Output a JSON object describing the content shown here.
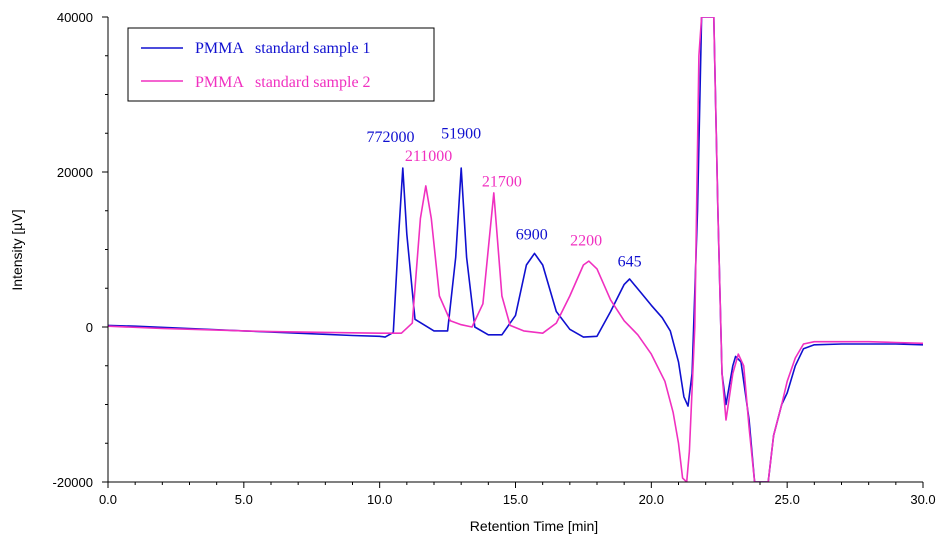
{
  "chart_data": {
    "type": "line",
    "xlabel": "Retention Time [min]",
    "ylabel": "Intensity [µV]",
    "xlim": [
      0,
      30
    ],
    "ylim": [
      -20000,
      40000
    ],
    "x_ticks": [
      "0.0",
      "5.0",
      "10.0",
      "15.0",
      "20.0",
      "25.0",
      "30.0"
    ],
    "y_ticks": [
      "-20000",
      "0",
      "20000",
      "40000"
    ],
    "grid": false,
    "legend_position": "top-left",
    "colors": {
      "series1": "#1010d0",
      "series2": "#f030c0"
    },
    "series": [
      {
        "name": "PMMA   standard sample 1",
        "color": "#1010d0",
        "points": [
          [
            0,
            200
          ],
          [
            1,
            100
          ],
          [
            3,
            -200
          ],
          [
            5,
            -500
          ],
          [
            7,
            -800
          ],
          [
            9,
            -1100
          ],
          [
            10,
            -1200
          ],
          [
            10.2,
            -1300
          ],
          [
            10.5,
            -700
          ],
          [
            10.7,
            12000
          ],
          [
            10.85,
            20500
          ],
          [
            11.0,
            12000
          ],
          [
            11.3,
            1000
          ],
          [
            12.0,
            -500
          ],
          [
            12.5,
            -500
          ],
          [
            12.8,
            9000
          ],
          [
            13.0,
            20500
          ],
          [
            13.2,
            9000
          ],
          [
            13.5,
            0
          ],
          [
            14.0,
            -1000
          ],
          [
            14.5,
            -1000
          ],
          [
            15.0,
            1500
          ],
          [
            15.4,
            8000
          ],
          [
            15.7,
            9500
          ],
          [
            16.0,
            8000
          ],
          [
            16.5,
            2000
          ],
          [
            17.0,
            -300
          ],
          [
            17.5,
            -1300
          ],
          [
            18.0,
            -1200
          ],
          [
            18.5,
            2000
          ],
          [
            19.0,
            5500
          ],
          [
            19.2,
            6200
          ],
          [
            19.6,
            4500
          ],
          [
            20.0,
            2800
          ],
          [
            20.4,
            1200
          ],
          [
            20.7,
            -500
          ],
          [
            21.0,
            -4500
          ],
          [
            21.2,
            -9000
          ],
          [
            21.35,
            -10200
          ],
          [
            21.5,
            -6000
          ],
          [
            21.7,
            15000
          ],
          [
            21.85,
            40000
          ],
          [
            22.3,
            40000
          ],
          [
            22.45,
            15000
          ],
          [
            22.6,
            -6000
          ],
          [
            22.75,
            -10000
          ],
          [
            23.0,
            -5000
          ],
          [
            23.1,
            -3800
          ],
          [
            23.3,
            -4500
          ],
          [
            23.6,
            -12000
          ],
          [
            23.8,
            -20000
          ],
          [
            24.3,
            -20000
          ],
          [
            24.5,
            -14000
          ],
          [
            24.8,
            -10000
          ],
          [
            25.0,
            -8500
          ],
          [
            25.3,
            -5000
          ],
          [
            25.6,
            -2800
          ],
          [
            26.0,
            -2300
          ],
          [
            27.0,
            -2200
          ],
          [
            28.0,
            -2200
          ],
          [
            29.0,
            -2200
          ],
          [
            30.0,
            -2300
          ]
        ]
      },
      {
        "name": "PMMA   standard sample 2",
        "color": "#f030c0",
        "points": [
          [
            0,
            100
          ],
          [
            2,
            -200
          ],
          [
            4,
            -400
          ],
          [
            6,
            -600
          ],
          [
            8,
            -700
          ],
          [
            10,
            -800
          ],
          [
            10.8,
            -800
          ],
          [
            11.2,
            500
          ],
          [
            11.5,
            14000
          ],
          [
            11.7,
            18200
          ],
          [
            11.9,
            14000
          ],
          [
            12.2,
            4000
          ],
          [
            12.6,
            800
          ],
          [
            13.0,
            300
          ],
          [
            13.4,
            0
          ],
          [
            13.8,
            3000
          ],
          [
            14.2,
            17300
          ],
          [
            14.5,
            4000
          ],
          [
            14.8,
            200
          ],
          [
            15.3,
            -500
          ],
          [
            16.0,
            -800
          ],
          [
            16.5,
            500
          ],
          [
            17.0,
            4000
          ],
          [
            17.5,
            8000
          ],
          [
            17.7,
            8500
          ],
          [
            18.0,
            7500
          ],
          [
            18.5,
            3500
          ],
          [
            19.0,
            800
          ],
          [
            19.5,
            -1000
          ],
          [
            20.0,
            -3500
          ],
          [
            20.5,
            -7000
          ],
          [
            20.8,
            -11000
          ],
          [
            21.0,
            -15000
          ],
          [
            21.15,
            -19500
          ],
          [
            21.3,
            -20000
          ],
          [
            21.4,
            -16000
          ],
          [
            21.6,
            0
          ],
          [
            21.75,
            35000
          ],
          [
            21.85,
            40000
          ],
          [
            22.3,
            40000
          ],
          [
            22.45,
            15000
          ],
          [
            22.6,
            -6000
          ],
          [
            22.75,
            -12000
          ],
          [
            23.0,
            -6000
          ],
          [
            23.2,
            -3500
          ],
          [
            23.4,
            -5000
          ],
          [
            23.6,
            -13000
          ],
          [
            23.8,
            -20000
          ],
          [
            24.3,
            -20000
          ],
          [
            24.5,
            -14000
          ],
          [
            24.8,
            -10000
          ],
          [
            25.0,
            -7000
          ],
          [
            25.3,
            -4000
          ],
          [
            25.6,
            -2200
          ],
          [
            26.0,
            -1900
          ],
          [
            27.0,
            -1900
          ],
          [
            28.0,
            -1900
          ],
          [
            29.0,
            -2000
          ],
          [
            30.0,
            -2100
          ]
        ]
      }
    ],
    "peak_labels": [
      {
        "text": "772000",
        "x": 10.4,
        "y": 23900,
        "color": "#1010d0"
      },
      {
        "text": "211000",
        "x": 11.8,
        "y": 21400,
        "color": "#f030c0"
      },
      {
        "text": "51900",
        "x": 13.0,
        "y": 24300,
        "color": "#1010d0"
      },
      {
        "text": "21700",
        "x": 14.5,
        "y": 18100,
        "color": "#f030c0"
      },
      {
        "text": "6900",
        "x": 15.6,
        "y": 11300,
        "color": "#1010d0"
      },
      {
        "text": "2200",
        "x": 17.6,
        "y": 10500,
        "color": "#f030c0"
      },
      {
        "text": "645",
        "x": 19.2,
        "y": 7800,
        "color": "#1010d0"
      }
    ]
  }
}
